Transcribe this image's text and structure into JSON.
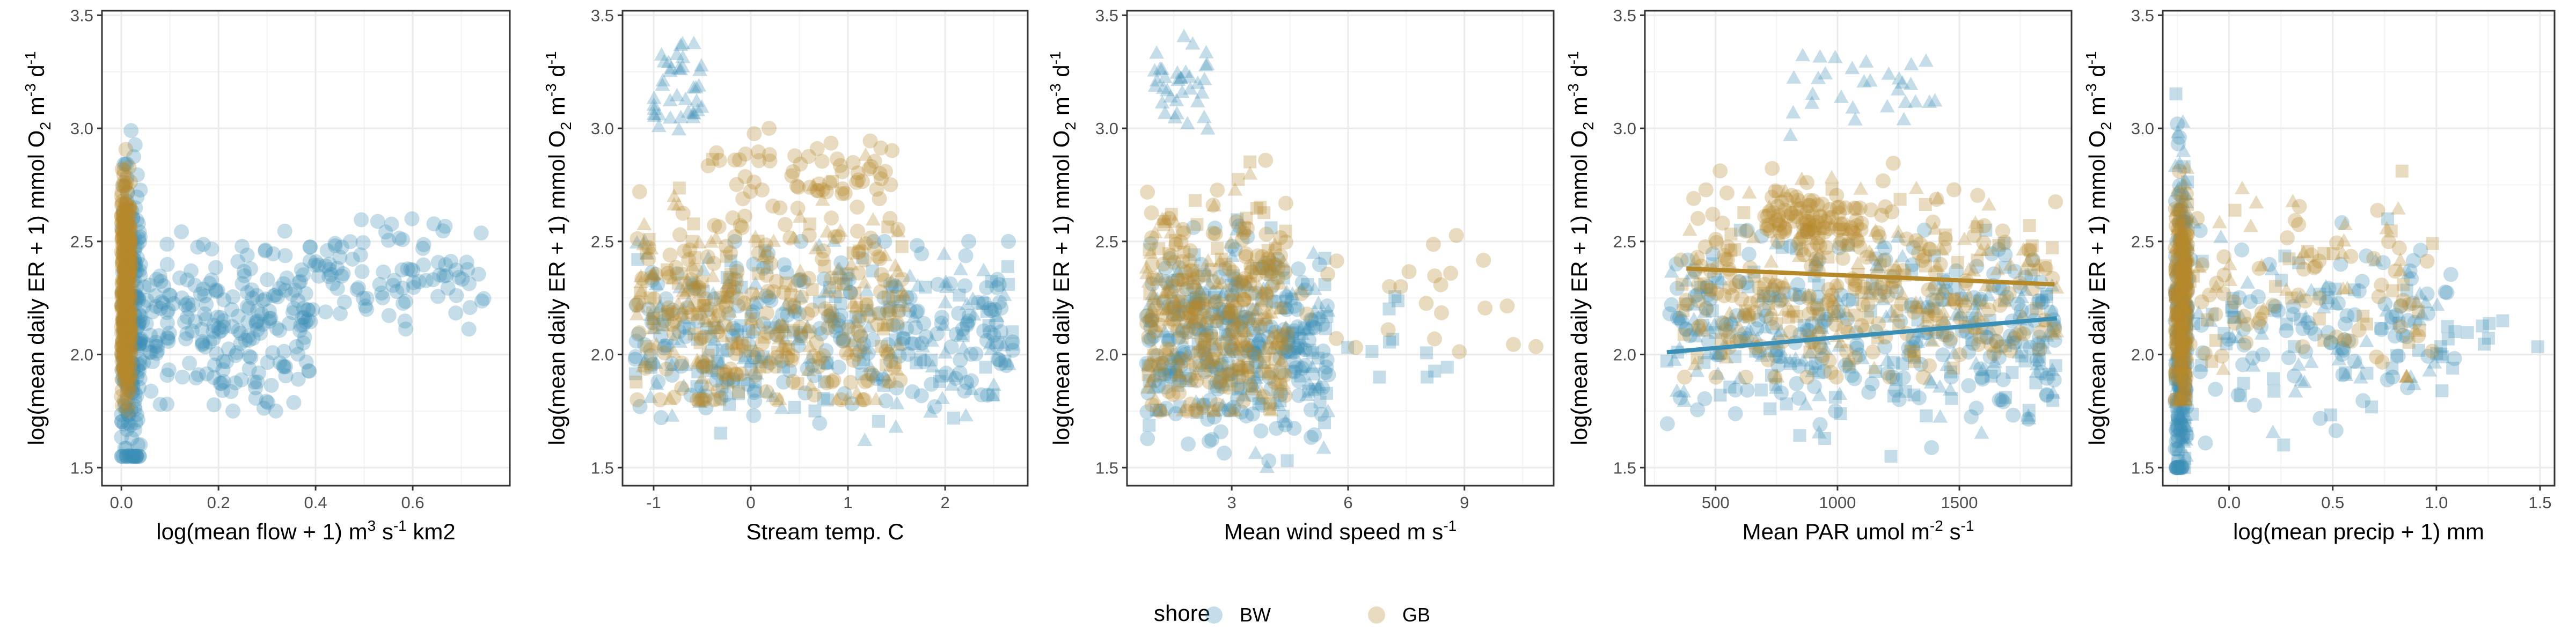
{
  "colors": {
    "BW": "#3a8fb7",
    "GB": "#b5892a",
    "grid": "#ebebeb",
    "panel_border": "#333333"
  },
  "legend": {
    "title": "shore",
    "entries": [
      {
        "label": "BW",
        "color": "#3a8fb7"
      },
      {
        "label": "GB",
        "color": "#b5892a"
      }
    ]
  },
  "chart_data": [
    {
      "type": "scatter",
      "ylabel": "log(mean daily ER + 1) mmol O2 m-3 d-1",
      "ylabel_parts": {
        "pre": "log(mean daily ER + 1) mmol O",
        "sub": "2",
        "mid1": " m",
        "sup1": "-3",
        "mid2": " d",
        "sup2": "-1"
      },
      "xlabel": "log(mean flow + 1) m3 s-1 km2",
      "xlabel_parts": {
        "pre": "log(mean flow + 1) m",
        "sup1": "3",
        "mid1": " s",
        "sup2": "-1",
        "post": " km2"
      },
      "xlim": [
        -0.04,
        0.8
      ],
      "ylim": [
        1.42,
        3.52
      ],
      "x_ticks": [
        0,
        0.2,
        0.4,
        0.6
      ],
      "x_tick_labels": [
        "0.0",
        "0.2",
        "0.4",
        "0.6"
      ],
      "y_ticks": [
        1.5,
        2.0,
        2.5,
        3.0,
        3.5
      ],
      "y_tick_labels": [
        "1.5",
        "2.0",
        "2.5",
        "3.0",
        "3.5"
      ],
      "gen": {
        "BW": [
          {
            "n": 220,
            "x": [
              0.0,
              0.04
            ],
            "y": [
              1.55,
              3.4
            ],
            "yc": 2.1,
            "shape": "circle"
          },
          {
            "n": 230,
            "x": [
              0.03,
              0.4
            ],
            "y": [
              1.75,
              2.6
            ],
            "yc": 2.15,
            "shape": "circle"
          },
          {
            "n": 90,
            "x": [
              0.4,
              0.75
            ],
            "y": [
              2.05,
              2.6
            ],
            "yc": 2.35,
            "shape": "circle"
          }
        ],
        "GB": [
          {
            "n": 320,
            "x": [
              0.0,
              0.02
            ],
            "y": [
              1.75,
              3.02
            ],
            "yc": 2.25,
            "shape": "circle"
          }
        ]
      }
    },
    {
      "type": "scatter",
      "ylabel": "log(mean daily ER + 1) mmol O2 m-3 d-1",
      "ylabel_parts": {
        "pre": "log(mean daily ER + 1) mmol O",
        "sub": "2",
        "mid1": " m",
        "sup1": "-3",
        "mid2": " d",
        "sup2": "-1"
      },
      "xlabel": "Stream temp. C",
      "xlabel_parts": {
        "pre": "Stream temp. C"
      },
      "xlim": [
        -1.32,
        2.85
      ],
      "ylim": [
        1.42,
        3.52
      ],
      "x_ticks": [
        -1,
        0,
        1,
        2
      ],
      "x_tick_labels": [
        "-1",
        "0",
        "1",
        "2"
      ],
      "y_ticks": [
        1.5,
        2.0,
        2.5,
        3.0,
        3.5
      ],
      "y_tick_labels": [
        "1.5",
        "2.0",
        "2.5",
        "3.0",
        "3.5"
      ],
      "gen": {
        "BW": [
          {
            "n": 420,
            "x": [
              -1.2,
              2.7
            ],
            "y": [
              1.55,
              2.5
            ],
            "yc": 2.1,
            "shape": "mixed"
          },
          {
            "n": 40,
            "x": [
              -1.0,
              -0.5
            ],
            "y": [
              2.9,
              3.45
            ],
            "yc": 3.2,
            "shape": "triangle"
          }
        ],
        "GB": [
          {
            "n": 380,
            "x": [
              -1.2,
              1.6
            ],
            "y": [
              1.8,
              3.0
            ],
            "yc": 2.2,
            "shape": "mixed"
          },
          {
            "n": 60,
            "x": [
              -0.5,
              1.5
            ],
            "y": [
              2.6,
              3.0
            ],
            "yc": 2.8,
            "shape": "circle"
          }
        ]
      }
    },
    {
      "type": "scatter",
      "ylabel": "log(mean daily ER + 1) mmol O2 m-3 d-1",
      "ylabel_parts": {
        "pre": "log(mean daily ER + 1) mmol O",
        "sub": "2",
        "mid1": " m",
        "sup1": "-3",
        "mid2": " d",
        "sup2": "-1"
      },
      "xlabel": "Mean wind speed m s-1",
      "xlabel_parts": {
        "pre": "Mean wind speed m s",
        "sup1": "-1"
      },
      "xlim": [
        0.3,
        11.3
      ],
      "ylim": [
        1.42,
        3.52
      ],
      "x_ticks": [
        3,
        6,
        9
      ],
      "x_tick_labels": [
        "3",
        "6",
        "9"
      ],
      "y_ticks": [
        1.5,
        2.0,
        2.5,
        3.0,
        3.5
      ],
      "y_tick_labels": [
        "1.5",
        "2.0",
        "2.5",
        "3.0",
        "3.5"
      ],
      "gen": {
        "BW": [
          {
            "n": 400,
            "x": [
              0.8,
              5.5
            ],
            "y": [
              1.5,
              2.6
            ],
            "yc": 2.05,
            "shape": "mixed"
          },
          {
            "n": 35,
            "x": [
              1.0,
              2.5
            ],
            "y": [
              2.9,
              3.45
            ],
            "yc": 3.2,
            "shape": "triangle"
          },
          {
            "n": 15,
            "x": [
              5.0,
              9.0
            ],
            "y": [
              1.9,
              2.4
            ],
            "yc": 2.1,
            "shape": "square"
          }
        ],
        "GB": [
          {
            "n": 360,
            "x": [
              0.8,
              4.5
            ],
            "y": [
              1.75,
              3.0
            ],
            "yc": 2.2,
            "shape": "mixed"
          },
          {
            "n": 25,
            "x": [
              4.0,
              11.0
            ],
            "y": [
              2.0,
              2.85
            ],
            "yc": 2.3,
            "shape": "circle"
          }
        ]
      }
    },
    {
      "type": "scatter",
      "ylabel": "log(mean daily ER + 1) mmol O2 m-3 d-1",
      "ylabel_parts": {
        "pre": "log(mean daily ER + 1) mmol O",
        "sub": "2",
        "mid1": " m",
        "sup1": "-3",
        "mid2": " d",
        "sup2": "-1"
      },
      "xlabel": "Mean PAR umol m-2 s-1",
      "xlabel_parts": {
        "pre": "Mean PAR umol m",
        "sup1": "-2",
        "mid1": " s",
        "sup2": "-1"
      },
      "xlim": [
        210,
        1960
      ],
      "ylim": [
        1.42,
        3.52
      ],
      "x_ticks": [
        500,
        1000,
        1500
      ],
      "x_tick_labels": [
        "500",
        "1000",
        "1500"
      ],
      "y_ticks": [
        1.5,
        2.0,
        2.5,
        3.0,
        3.5
      ],
      "y_tick_labels": [
        "1.5",
        "2.0",
        "2.5",
        "3.0",
        "3.5"
      ],
      "trend_lines": [
        {
          "shore": "BW",
          "x": [
            300,
            1900
          ],
          "y": [
            2.01,
            2.16
          ]
        },
        {
          "shore": "GB",
          "x": [
            380,
            1890
          ],
          "y": [
            2.38,
            2.31
          ]
        }
      ],
      "gen": {
        "BW": [
          {
            "n": 420,
            "x": [
              300,
              1900
            ],
            "y": [
              1.55,
              2.55
            ],
            "yc": 2.1,
            "shape": "mixed"
          },
          {
            "n": 30,
            "x": [
              800,
              1400
            ],
            "y": [
              2.9,
              3.45
            ],
            "yc": 3.2,
            "shape": "triangle"
          }
        ],
        "GB": [
          {
            "n": 380,
            "x": [
              350,
              1900
            ],
            "y": [
              1.9,
              3.0
            ],
            "yc": 2.3,
            "shape": "mixed"
          },
          {
            "n": 80,
            "x": [
              700,
              1100
            ],
            "y": [
              2.45,
              2.75
            ],
            "yc": 2.6,
            "shape": "circle"
          }
        ]
      }
    },
    {
      "type": "scatter",
      "ylabel": "log(mean daily ER + 1) mmol O2 m-3 d-1",
      "ylabel_parts": {
        "pre": "log(mean daily ER + 1) mmol O",
        "sub": "2",
        "mid1": " m",
        "sup1": "-3",
        "mid2": " d",
        "sup2": "-1"
      },
      "xlabel": "log(mean precip + 1) mm",
      "xlabel_parts": {
        "pre": "log(mean precip + 1) mm"
      },
      "xlim": [
        -0.32,
        1.57
      ],
      "ylim": [
        1.42,
        3.52
      ],
      "x_ticks": [
        0,
        0.5,
        1,
        1.5
      ],
      "x_tick_labels": [
        "0.0",
        "0.5",
        "1.0",
        "1.5"
      ],
      "y_ticks": [
        1.5,
        2.0,
        2.5,
        3.0,
        3.5
      ],
      "y_tick_labels": [
        "1.5",
        "2.0",
        "2.5",
        "3.0",
        "3.5"
      ],
      "gen": {
        "BW": [
          {
            "n": 230,
            "x": [
              -0.26,
              -0.2
            ],
            "y": [
              1.5,
              3.45
            ],
            "yc": 2.1,
            "shape": "mixed"
          },
          {
            "n": 170,
            "x": [
              -0.2,
              1.1
            ],
            "y": [
              1.6,
              2.6
            ],
            "yc": 2.1,
            "shape": "mixed"
          },
          {
            "n": 12,
            "x": [
              1.0,
              1.5
            ],
            "y": [
              1.9,
              2.2
            ],
            "yc": 2.05,
            "shape": "square"
          }
        ],
        "GB": [
          {
            "n": 240,
            "x": [
              -0.26,
              -0.2
            ],
            "y": [
              1.8,
              3.0
            ],
            "yc": 2.25,
            "shape": "mixed"
          },
          {
            "n": 110,
            "x": [
              -0.2,
              1.0
            ],
            "y": [
              1.9,
              2.95
            ],
            "yc": 2.3,
            "shape": "mixed"
          }
        ]
      }
    }
  ]
}
